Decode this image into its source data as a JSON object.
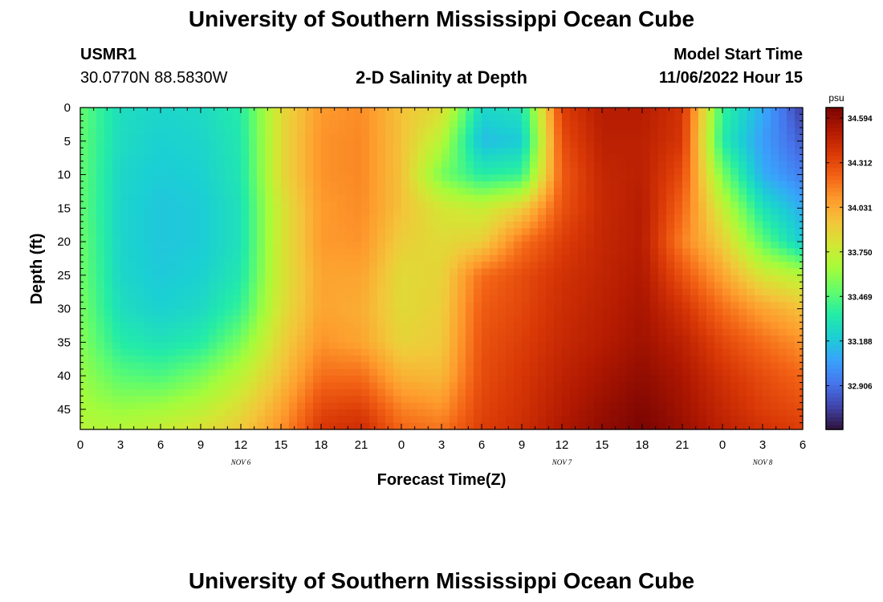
{
  "page": {
    "title_top": "University of Southern Mississippi Ocean Cube",
    "title_bottom": "University of Southern Mississippi Ocean Cube",
    "station": "USMR1",
    "location": "30.0770N  88.5830W",
    "model_start_label": "Model Start Time",
    "model_start_value": "11/06/2022 Hour 15"
  },
  "chart_data": {
    "type": "heatmap",
    "title": "2-D Salinity at Depth",
    "xlabel": "Forecast Time(Z)",
    "ylabel": "Depth (ft)",
    "x_ticks": [
      "0",
      "3",
      "6",
      "9",
      "12",
      "15",
      "18",
      "21",
      "0",
      "3",
      "6",
      "9",
      "12",
      "15",
      "18",
      "21",
      "0",
      "3",
      "6"
    ],
    "date_labels": [
      {
        "label": "NOV 6",
        "at_tick": 4
      },
      {
        "label": "NOV 7",
        "at_tick": 12
      },
      {
        "label": "NOV 8",
        "at_tick": 17
      }
    ],
    "y_ticks": [
      0,
      5,
      10,
      15,
      20,
      25,
      30,
      35,
      40,
      45
    ],
    "ylim": [
      0,
      48
    ],
    "xlim_hours": [
      0,
      54
    ],
    "colorbar": {
      "unit": "psu",
      "ticks": [
        "34.594",
        "34.312",
        "34.031",
        "33.750",
        "33.469",
        "33.188",
        "32.906"
      ],
      "min": 32.63,
      "max": 34.66,
      "colors": [
        "#30123b",
        "#4145ab",
        "#4675ed",
        "#39a2fc",
        "#1bcfd4",
        "#24eca6",
        "#61fc6c",
        "#a4fc3b",
        "#d1e834",
        "#f3c63a",
        "#fe9b2d",
        "#f36315",
        "#d93806",
        "#b11901",
        "#7a0402"
      ]
    },
    "depths_ft": [
      0,
      5,
      10,
      15,
      20,
      25,
      30,
      35,
      40,
      45,
      48
    ],
    "times_hours": [
      0,
      3,
      6,
      9,
      12,
      15,
      18,
      21,
      24,
      27,
      30,
      33,
      36,
      39,
      42,
      45,
      48,
      51,
      54
    ],
    "salinity_psu": [
      [
        33.5,
        33.28,
        33.24,
        33.26,
        33.35,
        33.85,
        34.08,
        34.12,
        33.95,
        33.85,
        33.25,
        33.3,
        34.35,
        34.5,
        34.5,
        34.4,
        33.4,
        33.1,
        32.75
      ],
      [
        33.5,
        33.27,
        33.22,
        33.24,
        33.33,
        33.85,
        34.1,
        34.13,
        33.95,
        33.7,
        33.15,
        33.2,
        34.3,
        34.48,
        34.48,
        34.38,
        33.35,
        33.05,
        32.85
      ],
      [
        33.5,
        33.25,
        33.2,
        33.22,
        33.32,
        33.85,
        34.1,
        34.13,
        33.95,
        33.55,
        33.35,
        33.4,
        34.25,
        34.45,
        34.48,
        34.3,
        33.55,
        33.1,
        32.95
      ],
      [
        33.5,
        33.24,
        33.18,
        33.2,
        33.3,
        33.8,
        34.08,
        34.12,
        33.95,
        33.8,
        33.75,
        33.9,
        34.28,
        34.44,
        34.5,
        34.22,
        33.75,
        33.3,
        33.1
      ],
      [
        33.52,
        33.24,
        33.18,
        33.2,
        33.3,
        33.8,
        34.08,
        34.1,
        33.9,
        33.85,
        33.9,
        34.18,
        34.35,
        34.45,
        34.5,
        34.15,
        33.9,
        33.5,
        33.2
      ],
      [
        33.53,
        33.25,
        33.19,
        33.22,
        33.33,
        33.8,
        34.05,
        34.05,
        33.85,
        33.88,
        34.2,
        34.3,
        34.4,
        34.46,
        34.52,
        34.28,
        34.05,
        33.8,
        33.7
      ],
      [
        33.55,
        33.28,
        33.22,
        33.26,
        33.4,
        33.82,
        34.05,
        34.02,
        33.85,
        33.9,
        34.25,
        34.32,
        34.42,
        34.48,
        34.54,
        34.4,
        34.2,
        34.05,
        33.95
      ],
      [
        33.58,
        33.35,
        33.3,
        33.35,
        33.55,
        33.88,
        34.1,
        34.05,
        33.88,
        33.92,
        34.28,
        34.35,
        34.44,
        34.5,
        34.56,
        34.48,
        34.32,
        34.2,
        34.1
      ],
      [
        33.62,
        33.48,
        33.45,
        33.55,
        33.72,
        33.95,
        34.2,
        34.2,
        34.0,
        33.98,
        34.3,
        34.38,
        34.47,
        34.54,
        34.6,
        34.53,
        34.4,
        34.3,
        34.22
      ],
      [
        33.66,
        33.62,
        33.65,
        33.72,
        33.85,
        34.05,
        34.32,
        34.35,
        34.15,
        34.1,
        34.33,
        34.4,
        34.5,
        34.58,
        34.64,
        34.56,
        34.45,
        34.35,
        34.3
      ],
      [
        33.7,
        33.7,
        33.75,
        33.82,
        33.92,
        34.1,
        34.38,
        34.42,
        34.22,
        34.18,
        34.35,
        34.42,
        34.52,
        34.6,
        34.66,
        34.58,
        34.48,
        34.4,
        34.35
      ]
    ]
  }
}
